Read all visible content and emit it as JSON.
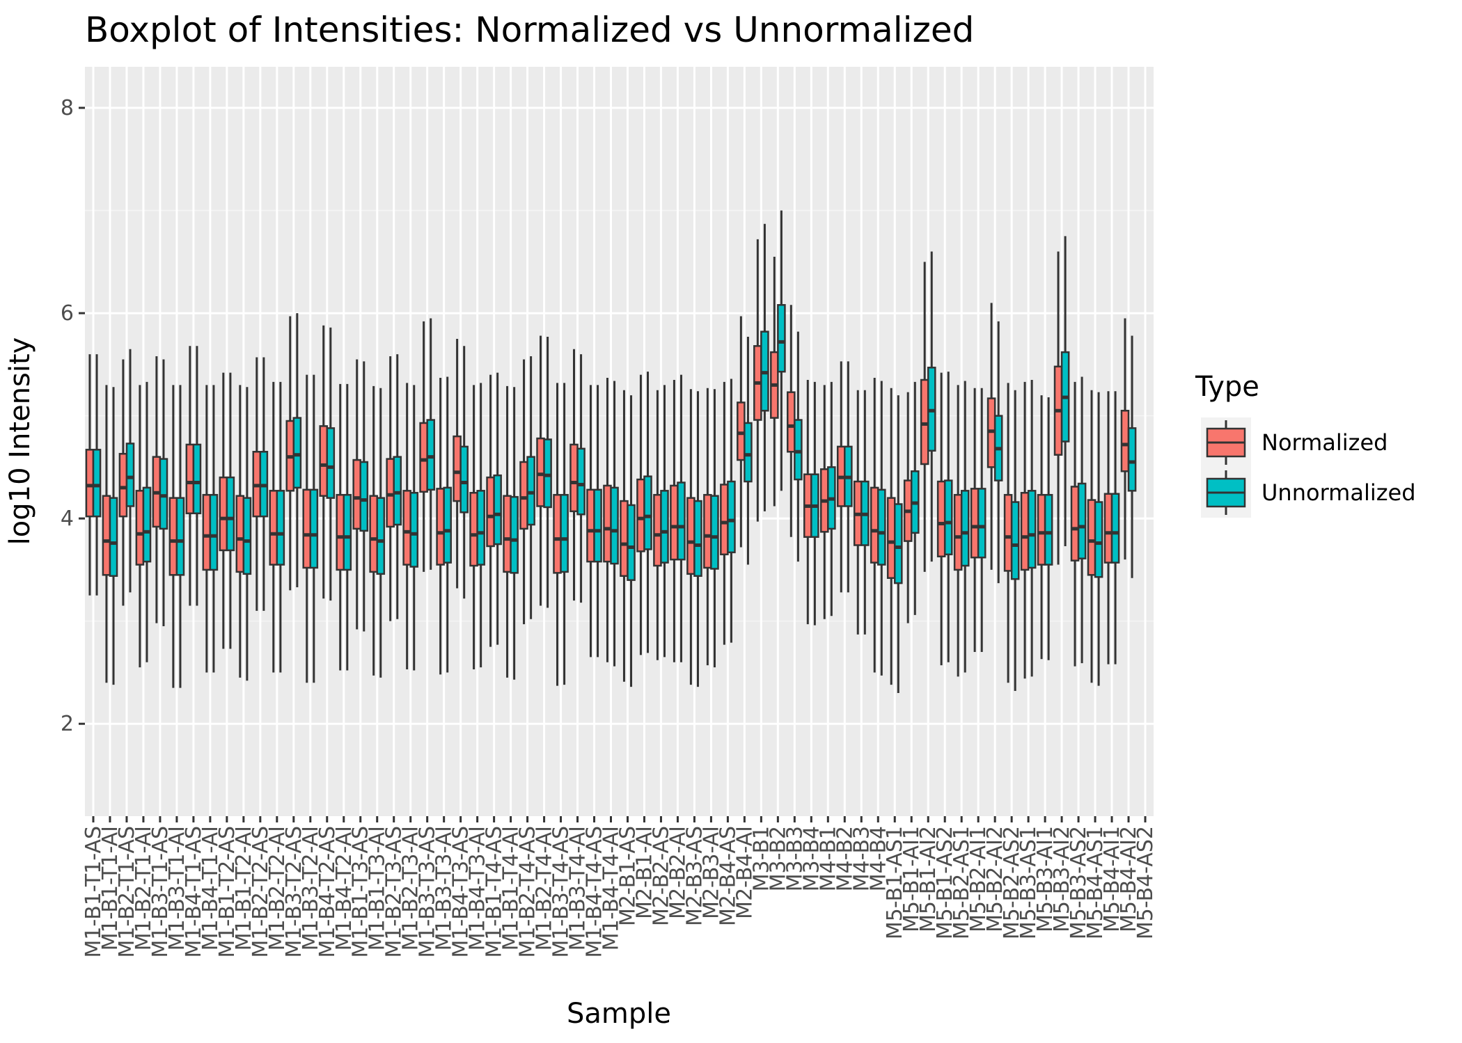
{
  "chart_data": {
    "type": "boxplot",
    "title": "Boxplot of Intensities: Normalized vs Unnormalized",
    "xlabel": "Sample",
    "ylabel": "log10 Intensity",
    "ylim": [
      1.1,
      8.4
    ],
    "yticks": [
      2,
      4,
      6,
      8
    ],
    "grid": true,
    "legend": {
      "title": "Type",
      "position": "right"
    },
    "series": [
      {
        "name": "Normalized",
        "color": "#F8766D"
      },
      {
        "name": "Unnormalized",
        "color": "#00BFC4"
      }
    ],
    "categories": [
      "M1-B1-T1-AS",
      "M1-B1-T1-AI",
      "M1-B2-T1-AS",
      "M1-B2-T1-AI",
      "M1-B3-T1-AS",
      "M1-B3-T1-AI",
      "M1-B4-T1-AS",
      "M1-B4-T1-AI",
      "M1-B1-T2-AS",
      "M1-B1-T2-AI",
      "M1-B2-T2-AS",
      "M1-B2-T2-AI",
      "M1-B3-T2-AS",
      "M1-B3-T2-AI",
      "M1-B4-T2-AS",
      "M1-B4-T2-AI",
      "M1-B1-T3-AS",
      "M1-B1-T3-AI",
      "M1-B2-T3-AS",
      "M1-B2-T3-AI",
      "M1-B3-T3-AS",
      "M1-B3-T3-AI",
      "M1-B4-T3-AS",
      "M1-B4-T3-AI",
      "M1-B1-T4-AS",
      "M1-B1-T4-AI",
      "M1-B2-T4-AS",
      "M1-B2-T4-AI",
      "M1-B3-T4-AS",
      "M1-B3-T4-AI",
      "M1-B4-T4-AS",
      "M1-B4-T4-AI",
      "M2-B1-AS",
      "M2-B1-AI",
      "M2-B2-AS",
      "M2-B2-AI",
      "M2-B3-AS",
      "M2-B3-AI",
      "M2-B4-AS",
      "M2-B4-AI",
      "M3-B1",
      "M3-B2",
      "M3-B3",
      "M3-B4",
      "M4-B1",
      "M4-B2",
      "M4-B3",
      "M4-B4",
      "M5-B1-AS1",
      "M5-B1-AI1",
      "M5-B1-AI2",
      "M5-B1-AS2",
      "M5-B2-AS1",
      "M5-B2-AI1",
      "M5-B2-AI2",
      "M5-B2-AS2",
      "M5-B3-AS1",
      "M5-B3-AI1",
      "M5-B3-AI2",
      "M5-B3-AS2",
      "M5-B4-AS1",
      "M5-B4-AI1",
      "M5-B4-AI2",
      "M5-B4-AS2"
    ],
    "boxes": [
      [
        [
          3.25,
          4.02,
          4.32,
          4.67,
          5.6
        ],
        [
          3.25,
          4.02,
          4.32,
          4.67,
          5.6
        ]
      ],
      [
        [
          2.4,
          3.45,
          3.78,
          4.22,
          5.3
        ],
        [
          2.38,
          3.44,
          3.76,
          4.2,
          5.28
        ]
      ],
      [
        [
          3.15,
          4.02,
          4.3,
          4.63,
          5.55
        ],
        [
          3.28,
          4.12,
          4.4,
          4.73,
          5.65
        ]
      ],
      [
        [
          2.55,
          3.55,
          3.85,
          4.27,
          5.3
        ],
        [
          2.6,
          3.58,
          3.87,
          4.3,
          5.33
        ]
      ],
      [
        [
          2.98,
          3.92,
          4.25,
          4.6,
          5.58
        ],
        [
          2.95,
          3.9,
          4.22,
          4.58,
          5.55
        ]
      ],
      [
        [
          2.35,
          3.45,
          3.78,
          4.2,
          5.3
        ],
        [
          2.35,
          3.45,
          3.78,
          4.2,
          5.3
        ]
      ],
      [
        [
          3.15,
          4.05,
          4.35,
          4.72,
          5.68
        ],
        [
          3.15,
          4.05,
          4.35,
          4.72,
          5.68
        ]
      ],
      [
        [
          2.5,
          3.5,
          3.83,
          4.23,
          5.3
        ],
        [
          2.5,
          3.5,
          3.83,
          4.23,
          5.3
        ]
      ],
      [
        [
          2.73,
          3.69,
          4.0,
          4.4,
          5.42
        ],
        [
          2.73,
          3.69,
          4.0,
          4.4,
          5.42
        ]
      ],
      [
        [
          2.45,
          3.48,
          3.8,
          4.22,
          5.3
        ],
        [
          2.42,
          3.46,
          3.78,
          4.2,
          5.28
        ]
      ],
      [
        [
          3.1,
          4.02,
          4.32,
          4.65,
          5.57
        ],
        [
          3.1,
          4.02,
          4.32,
          4.65,
          5.57
        ]
      ],
      [
        [
          2.5,
          3.55,
          3.85,
          4.27,
          5.33
        ],
        [
          2.5,
          3.55,
          3.85,
          4.27,
          5.33
        ]
      ],
      [
        [
          3.3,
          4.27,
          4.6,
          4.95,
          5.97
        ],
        [
          3.33,
          4.3,
          4.62,
          4.98,
          6.0
        ]
      ],
      [
        [
          2.4,
          3.52,
          3.84,
          4.28,
          5.4
        ],
        [
          2.4,
          3.52,
          3.84,
          4.28,
          5.4
        ]
      ],
      [
        [
          3.22,
          4.22,
          4.52,
          4.9,
          5.88
        ],
        [
          3.2,
          4.2,
          4.5,
          4.88,
          5.86
        ]
      ],
      [
        [
          2.52,
          3.5,
          3.82,
          4.23,
          5.31
        ],
        [
          2.52,
          3.5,
          3.82,
          4.23,
          5.31
        ]
      ],
      [
        [
          2.92,
          3.9,
          4.2,
          4.57,
          5.55
        ],
        [
          2.9,
          3.88,
          4.18,
          4.55,
          5.53
        ]
      ],
      [
        [
          2.47,
          3.48,
          3.8,
          4.22,
          5.29
        ],
        [
          2.45,
          3.46,
          3.78,
          4.2,
          5.27
        ]
      ],
      [
        [
          3.0,
          3.92,
          4.23,
          4.58,
          5.58
        ],
        [
          3.02,
          3.94,
          4.25,
          4.6,
          5.6
        ]
      ],
      [
        [
          2.53,
          3.55,
          3.87,
          4.27,
          5.32
        ],
        [
          2.52,
          3.53,
          3.85,
          4.25,
          5.3
        ]
      ],
      [
        [
          3.48,
          4.26,
          4.57,
          4.93,
          5.92
        ],
        [
          3.5,
          4.28,
          4.6,
          4.96,
          5.95
        ]
      ],
      [
        [
          2.48,
          3.55,
          3.86,
          4.29,
          5.37
        ],
        [
          2.5,
          3.57,
          3.88,
          4.3,
          5.38
        ]
      ],
      [
        [
          3.32,
          4.17,
          4.45,
          4.8,
          5.75
        ],
        [
          3.22,
          4.06,
          4.35,
          4.7,
          5.68
        ]
      ],
      [
        [
          2.53,
          3.54,
          3.84,
          4.25,
          5.3
        ],
        [
          2.55,
          3.55,
          3.86,
          4.27,
          5.32
        ]
      ],
      [
        [
          2.75,
          3.73,
          4.02,
          4.4,
          5.4
        ],
        [
          2.77,
          3.75,
          4.04,
          4.42,
          5.42
        ]
      ],
      [
        [
          2.45,
          3.48,
          3.8,
          4.22,
          5.29
        ],
        [
          2.43,
          3.47,
          3.79,
          4.21,
          5.28
        ]
      ],
      [
        [
          2.97,
          3.9,
          4.2,
          4.55,
          5.55
        ],
        [
          3.02,
          3.94,
          4.25,
          4.6,
          5.58
        ]
      ],
      [
        [
          3.15,
          4.12,
          4.43,
          4.78,
          5.78
        ],
        [
          3.13,
          4.11,
          4.42,
          4.77,
          5.77
        ]
      ],
      [
        [
          2.37,
          3.47,
          3.8,
          4.23,
          5.32
        ],
        [
          2.38,
          3.48,
          3.8,
          4.23,
          5.32
        ]
      ],
      [
        [
          3.2,
          4.07,
          4.35,
          4.72,
          5.65
        ],
        [
          3.18,
          4.04,
          4.33,
          4.68,
          5.6
        ]
      ],
      [
        [
          2.65,
          3.58,
          3.88,
          4.28,
          5.3
        ],
        [
          2.65,
          3.58,
          3.88,
          4.28,
          5.3
        ]
      ],
      [
        [
          2.6,
          3.58,
          3.9,
          4.32,
          5.37
        ],
        [
          2.56,
          3.56,
          3.88,
          4.3,
          5.34
        ]
      ],
      [
        [
          2.41,
          3.44,
          3.75,
          4.17,
          5.25
        ],
        [
          2.36,
          3.4,
          3.72,
          4.13,
          5.2
        ]
      ],
      [
        [
          2.67,
          3.68,
          4.0,
          4.38,
          5.4
        ],
        [
          2.69,
          3.7,
          4.02,
          4.41,
          5.43
        ]
      ],
      [
        [
          2.62,
          3.54,
          3.84,
          4.23,
          5.25
        ],
        [
          2.65,
          3.57,
          3.87,
          4.27,
          5.3
        ]
      ],
      [
        [
          2.6,
          3.6,
          3.92,
          4.32,
          5.35
        ],
        [
          2.6,
          3.6,
          3.92,
          4.35,
          5.4
        ]
      ],
      [
        [
          2.38,
          3.46,
          3.77,
          4.2,
          5.26
        ],
        [
          2.36,
          3.44,
          3.74,
          4.17,
          5.24
        ]
      ],
      [
        [
          2.57,
          3.52,
          3.83,
          4.23,
          5.27
        ],
        [
          2.55,
          3.51,
          3.82,
          4.22,
          5.26
        ]
      ],
      [
        [
          2.77,
          3.65,
          3.96,
          4.33,
          5.33
        ],
        [
          2.79,
          3.67,
          3.98,
          4.36,
          5.36
        ]
      ],
      [
        [
          3.72,
          4.57,
          4.83,
          5.13,
          5.97
        ],
        [
          3.55,
          4.36,
          4.62,
          4.93,
          5.77
        ]
      ],
      [
        [
          3.97,
          4.96,
          5.32,
          5.68,
          6.72
        ],
        [
          4.07,
          5.05,
          5.42,
          5.82,
          6.87
        ]
      ],
      [
        [
          4.12,
          4.98,
          5.3,
          5.62,
          6.55
        ],
        [
          4.27,
          5.43,
          5.72,
          6.08,
          7.0
        ]
      ],
      [
        [
          3.82,
          4.65,
          4.9,
          5.23,
          6.08
        ],
        [
          3.58,
          4.38,
          4.65,
          4.96,
          5.82
        ]
      ],
      [
        [
          2.97,
          3.82,
          4.12,
          4.43,
          5.35
        ],
        [
          2.96,
          3.82,
          4.12,
          4.43,
          5.33
        ]
      ],
      [
        [
          3.02,
          3.87,
          4.17,
          4.48,
          5.3
        ],
        [
          3.05,
          3.9,
          4.19,
          4.5,
          5.33
        ]
      ],
      [
        [
          3.28,
          4.12,
          4.4,
          4.7,
          5.53
        ],
        [
          3.28,
          4.12,
          4.4,
          4.7,
          5.53
        ]
      ],
      [
        [
          2.87,
          3.74,
          4.04,
          4.36,
          5.25
        ],
        [
          2.87,
          3.74,
          4.04,
          4.36,
          5.25
        ]
      ],
      [
        [
          2.5,
          3.57,
          3.88,
          4.3,
          5.37
        ],
        [
          2.47,
          3.55,
          3.86,
          4.28,
          5.34
        ]
      ],
      [
        [
          2.38,
          3.42,
          3.77,
          4.2,
          5.27
        ],
        [
          2.3,
          3.37,
          3.72,
          4.14,
          5.2
        ]
      ],
      [
        [
          2.98,
          3.78,
          4.07,
          4.37,
          5.23
        ],
        [
          3.06,
          3.86,
          4.15,
          4.46,
          5.33
        ]
      ],
      [
        [
          3.48,
          4.53,
          4.92,
          5.35,
          6.5
        ],
        [
          3.58,
          4.66,
          5.05,
          5.47,
          6.6
        ]
      ],
      [
        [
          2.57,
          3.63,
          3.95,
          4.36,
          5.42
        ],
        [
          2.6,
          3.65,
          3.96,
          4.37,
          5.43
        ]
      ],
      [
        [
          2.46,
          3.5,
          3.82,
          4.23,
          5.3
        ],
        [
          2.5,
          3.54,
          3.86,
          4.27,
          5.34
        ]
      ],
      [
        [
          2.7,
          3.62,
          3.92,
          4.29,
          5.27
        ],
        [
          2.7,
          3.62,
          3.92,
          4.29,
          5.27
        ]
      ],
      [
        [
          3.5,
          4.5,
          4.85,
          5.17,
          6.1
        ],
        [
          3.37,
          4.37,
          4.68,
          5.0,
          5.92
        ]
      ],
      [
        [
          2.4,
          3.49,
          3.82,
          4.23,
          5.32
        ],
        [
          2.32,
          3.41,
          3.74,
          4.16,
          5.25
        ]
      ],
      [
        [
          2.44,
          3.5,
          3.82,
          4.25,
          5.33
        ],
        [
          2.46,
          3.52,
          3.84,
          4.27,
          5.35
        ]
      ],
      [
        [
          2.63,
          3.55,
          3.86,
          4.23,
          5.2
        ],
        [
          2.62,
          3.55,
          3.86,
          4.23,
          5.18
        ]
      ],
      [
        [
          3.55,
          4.62,
          5.05,
          5.48,
          6.6
        ],
        [
          3.73,
          4.75,
          5.18,
          5.62,
          6.75
        ]
      ],
      [
        [
          2.56,
          3.59,
          3.9,
          4.31,
          5.33
        ],
        [
          2.59,
          3.61,
          3.92,
          4.34,
          5.38
        ]
      ],
      [
        [
          2.4,
          3.45,
          3.78,
          4.18,
          5.25
        ],
        [
          2.37,
          3.43,
          3.76,
          4.16,
          5.23
        ]
      ],
      [
        [
          2.58,
          3.57,
          3.86,
          4.24,
          5.24
        ],
        [
          2.58,
          3.57,
          3.86,
          4.24,
          5.24
        ]
      ],
      [
        [
          3.6,
          4.46,
          4.72,
          5.05,
          5.95
        ],
        [
          3.42,
          4.27,
          4.55,
          4.88,
          5.78
        ]
      ],
      [
        null,
        null
      ]
    ],
    "box_order": "each box is [min, q1, median, q3, max]"
  }
}
